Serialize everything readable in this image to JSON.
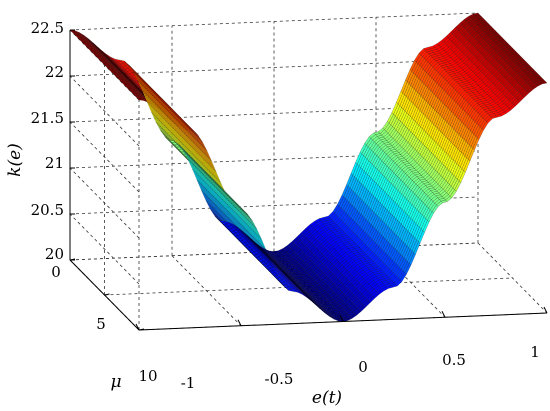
{
  "chart_data": {
    "type": "surface",
    "title": "",
    "xlabel": "e(t)",
    "ylabel": "μ",
    "zlabel": "k(e)",
    "xlim": [
      -1,
      1
    ],
    "ylim": [
      0,
      10
    ],
    "zlim": [
      20,
      22.5
    ],
    "xticks": [
      -1,
      -0.5,
      0,
      0.5,
      1
    ],
    "xtick_labels": [
      "-1",
      "-0.5",
      "0",
      "0.5",
      "1"
    ],
    "yticks": [
      0,
      5,
      10
    ],
    "ytick_labels": [
      "0",
      "5",
      "10"
    ],
    "zticks": [
      20,
      20.5,
      21,
      21.5,
      22,
      22.5
    ],
    "ztick_labels": [
      "20",
      "20.5",
      "21",
      "21.5",
      "22",
      "22.5"
    ],
    "grid": true,
    "colormap": "jet",
    "surface_profile": {
      "description_of_shape": "k varies with e(t); nearly constant along mu",
      "e": [
        -1.0,
        -0.75,
        -0.5,
        -0.25,
        0.0,
        0.25,
        0.5,
        0.75,
        1.0
      ],
      "k": [
        22.5,
        22.15,
        21.25,
        20.35,
        20.0,
        20.35,
        21.25,
        22.15,
        22.5
      ]
    }
  }
}
